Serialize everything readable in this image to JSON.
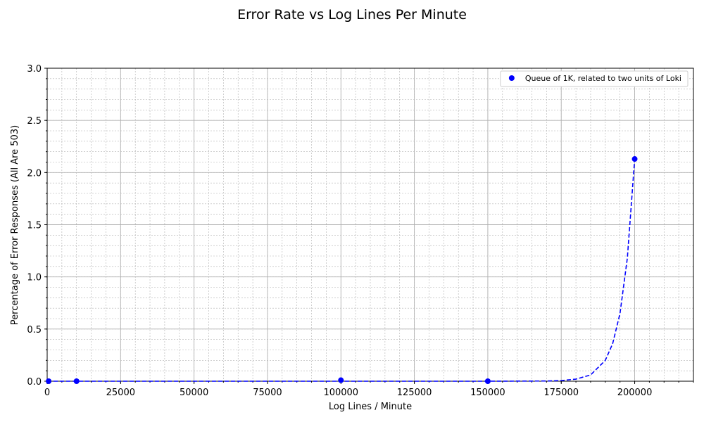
{
  "chart_data": {
    "type": "scatter",
    "title": "Error Rate vs Log Lines Per Minute",
    "xlabel": "Log Lines / Minute",
    "ylabel": "Percentage of Error Responses (All Are 503)",
    "xlim": [
      0,
      220000
    ],
    "ylim": [
      0,
      3
    ],
    "xticks": [
      0,
      25000,
      50000,
      75000,
      100000,
      125000,
      150000,
      175000,
      200000
    ],
    "yticks": [
      {
        "value": 0,
        "label": "0.0"
      },
      {
        "value": 0.5,
        "label": "0.5"
      },
      {
        "value": 1,
        "label": "1.0"
      },
      {
        "value": 1.5,
        "label": "1.5"
      },
      {
        "value": 2,
        "label": "2.0"
      },
      {
        "value": 2.5,
        "label": "2.5"
      },
      {
        "value": 3,
        "label": "3.0"
      }
    ],
    "grid": true,
    "minor_divisions": 5,
    "legend": "upper right",
    "series": [
      {
        "name": "Queue of 1K, related to two units of Loki",
        "type": "scatter",
        "color": "#0000ff",
        "x": [
          500,
          10000,
          100000,
          150000,
          200000
        ],
        "values": [
          0,
          0,
          0.01,
          0,
          2.13
        ]
      },
      {
        "type": "line",
        "color": "#0000ff",
        "dashed": true,
        "x": [
          0,
          50000,
          100000,
          150000,
          170000,
          175000,
          180000,
          185000,
          190000,
          192500,
          195000,
          197500,
          200000
        ],
        "values": [
          0,
          0,
          0,
          0,
          0.002,
          0.006,
          0.02,
          0.06,
          0.2,
          0.36,
          0.65,
          1.18,
          2.13
        ]
      }
    ]
  }
}
